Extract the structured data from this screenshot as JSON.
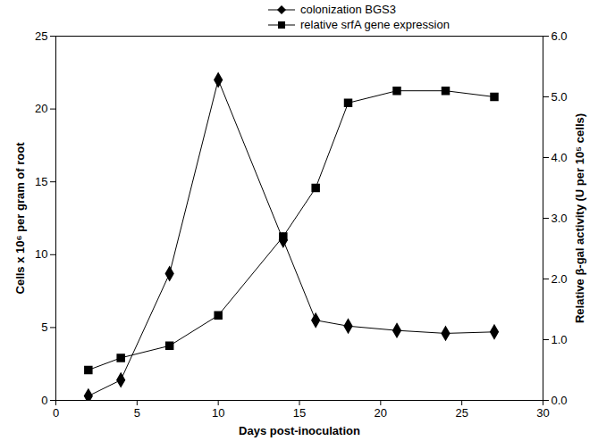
{
  "chart_data": {
    "type": "line",
    "x_label": "Days post-inoculation",
    "y_label": "Cells x 10⁶ per gram of root",
    "y2_label": "Relative β-gal activity (U per 10⁵ cells)",
    "x": [
      2,
      4,
      7,
      10,
      14,
      16,
      18,
      21,
      24,
      27
    ],
    "series": [
      {
        "name": "colonization BGS3",
        "color": "#000000",
        "marker": "diamond",
        "values": [
          0.3,
          1.4,
          8.7,
          22,
          11,
          5.5,
          5.1,
          4.8,
          4.6,
          4.7
        ]
      },
      {
        "name": "relative srfA gene expression",
        "color": "#000000",
        "marker": "square",
        "axis": "y2",
        "values": [
          0.5,
          0.7,
          0.9,
          1.4,
          2.7,
          3.5,
          4.9,
          5.1,
          5.1,
          5.0
        ]
      }
    ],
    "xlim": [
      0,
      30
    ],
    "xticks": [
      0,
      5,
      10,
      15,
      20,
      25,
      30
    ],
    "ylim": [
      0,
      25
    ],
    "yticks": [
      0,
      5,
      10,
      15,
      20,
      25
    ],
    "y2lim": [
      0,
      6
    ],
    "y2ticks": [
      0,
      1,
      2,
      3,
      4,
      5,
      6
    ],
    "legend": "top",
    "grid": false
  }
}
